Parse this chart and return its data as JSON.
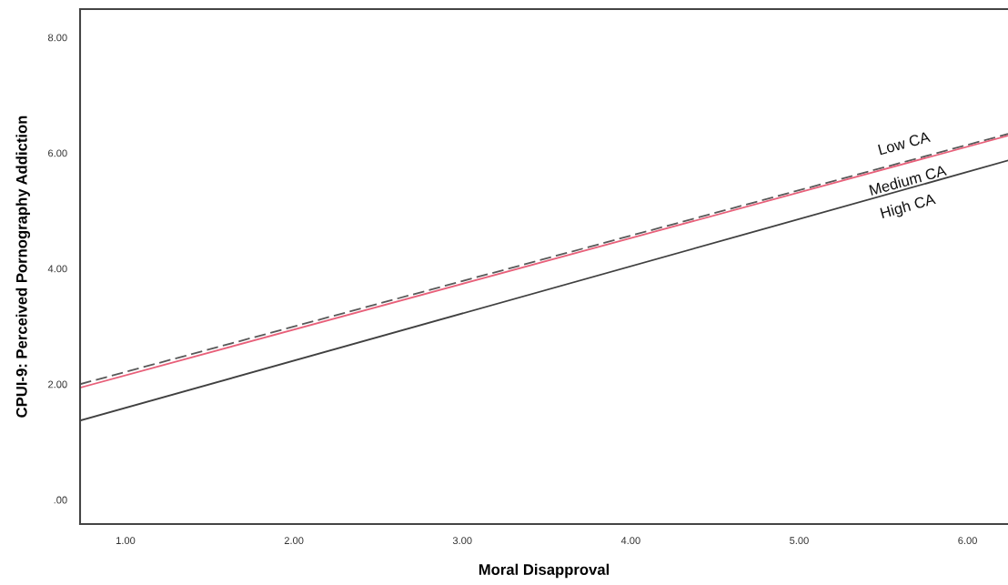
{
  "chart_data": {
    "type": "line",
    "xlabel": "Moral Disapproval",
    "ylabel": "CPUI-9: Perceived Pornography Addiction",
    "xlim": [
      0.73,
      6.24
    ],
    "ylim": [
      -0.42,
      8.49
    ],
    "xticks": [
      {
        "value": 1,
        "label": "1.00"
      },
      {
        "value": 2,
        "label": "2.00"
      },
      {
        "value": 3,
        "label": "3.00"
      },
      {
        "value": 4,
        "label": "4.00"
      },
      {
        "value": 5,
        "label": "5.00"
      },
      {
        "value": 6,
        "label": "6.00"
      }
    ],
    "yticks": [
      {
        "value": 0,
        "label": ".00"
      },
      {
        "value": 2,
        "label": "2.00"
      },
      {
        "value": 4,
        "label": "4.00"
      },
      {
        "value": 6,
        "label": "6.00"
      },
      {
        "value": 8,
        "label": "8.00"
      }
    ],
    "x": [
      0.73,
      6.24
    ],
    "series": [
      {
        "name": "Low CA",
        "color": "#595959",
        "line_style": "dashed",
        "values": [
          2.0,
          6.33
        ]
      },
      {
        "name": "Medium CA",
        "color": "#e8607a",
        "line_style": "solid",
        "values": [
          1.94,
          6.3
        ]
      },
      {
        "name": "High CA",
        "color": "#404040",
        "line_style": "solid",
        "values": [
          1.37,
          5.87
        ]
      }
    ],
    "grid": false,
    "legend": false,
    "marker": "none"
  }
}
